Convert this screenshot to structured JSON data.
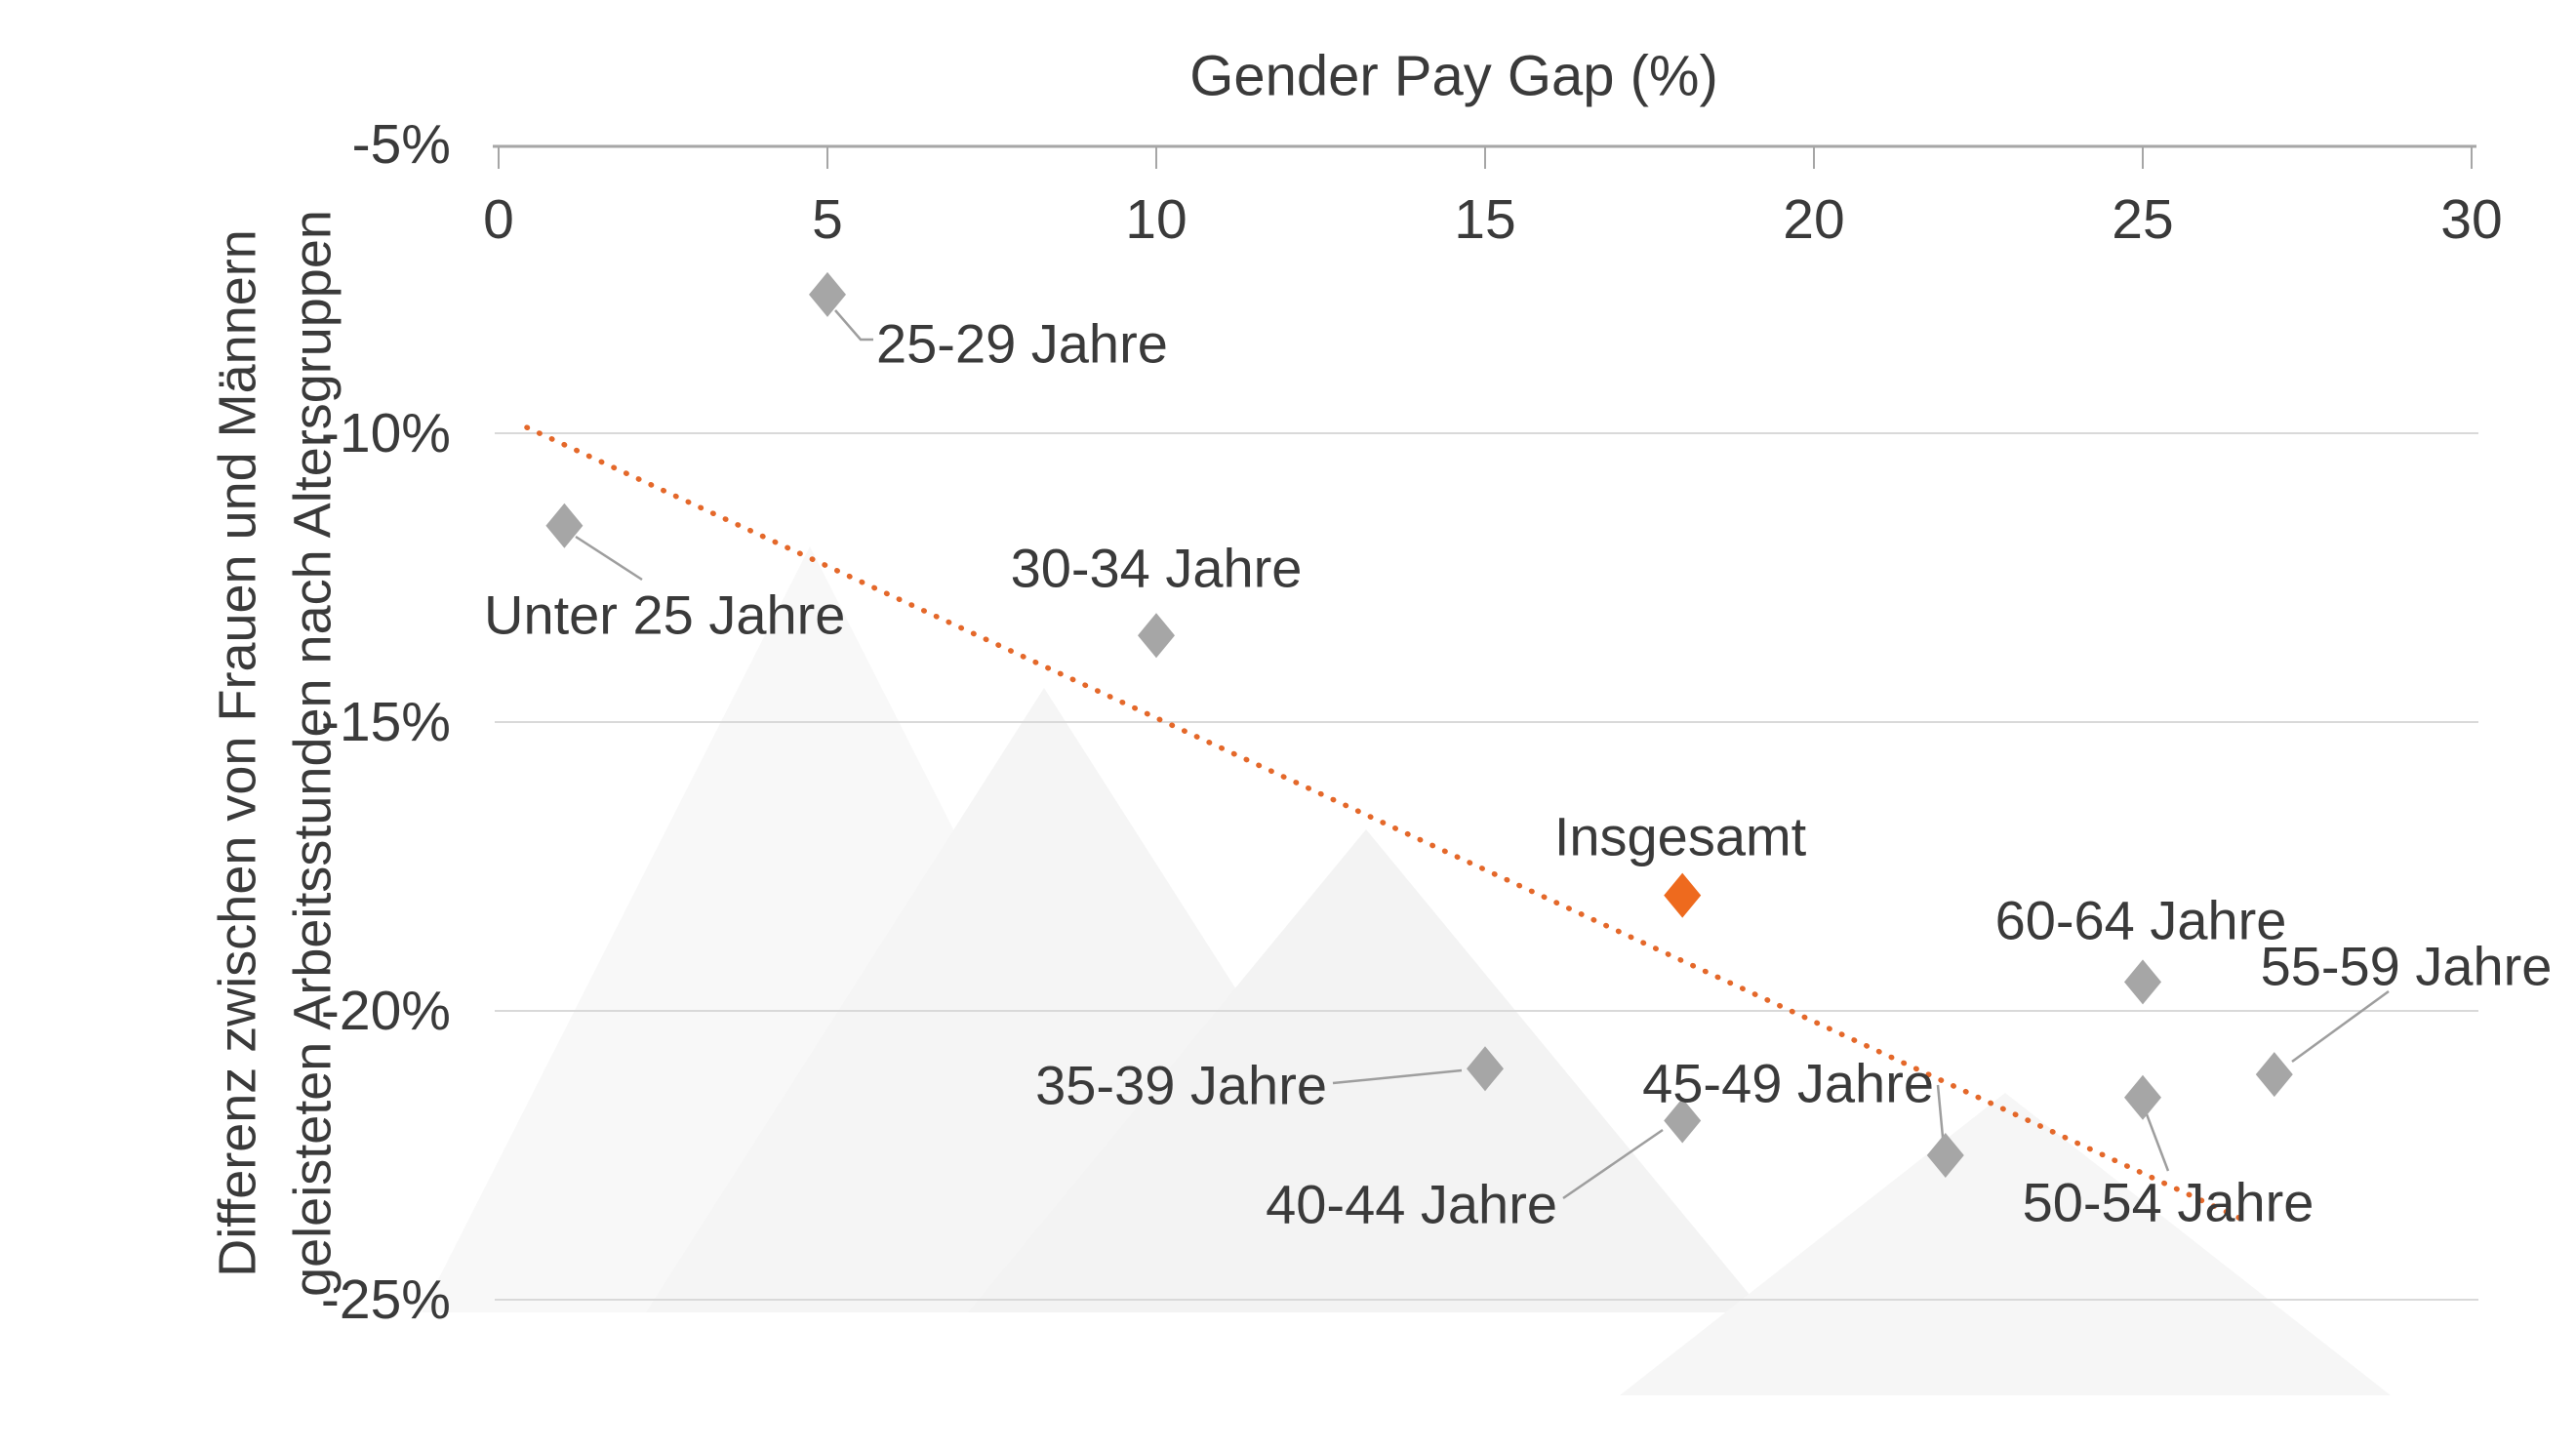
{
  "chart_data": {
    "type": "scatter",
    "title": "",
    "xlabel": "Gender Pay Gap (%)",
    "ylabel_lines": [
      "Differenz zwischen von Frauen und Männern",
      "geleisteten Arbeitsstunden nach Altersgruppen"
    ],
    "xlim": [
      0,
      30
    ],
    "ylim": [
      -25,
      -5
    ],
    "x_ticks": [
      0,
      5,
      10,
      15,
      20,
      25,
      30
    ],
    "y_ticks": [
      "-5%",
      "-10%",
      "-15%",
      "-20%",
      "-25%"
    ],
    "grid": "horizontal",
    "legend": null,
    "points": [
      {
        "label": "Unter 25 Jahre",
        "x": 1.0,
        "y": -11.6,
        "highlight": false
      },
      {
        "label": "25-29 Jahre",
        "x": 5.0,
        "y": -7.6,
        "highlight": false
      },
      {
        "label": "30-34 Jahre",
        "x": 10.0,
        "y": -13.5,
        "highlight": false
      },
      {
        "label": "35-39 Jahre",
        "x": 15.0,
        "y": -21.0,
        "highlight": false
      },
      {
        "label": "40-44 Jahre",
        "x": 18.0,
        "y": -21.9,
        "highlight": false
      },
      {
        "label": "45-49 Jahre",
        "x": 22.0,
        "y": -22.5,
        "highlight": false
      },
      {
        "label": "50-54 Jahre",
        "x": 25.0,
        "y": -21.5,
        "highlight": false
      },
      {
        "label": "55-59 Jahre",
        "x": 27.0,
        "y": -21.1,
        "highlight": false
      },
      {
        "label": "60-64 Jahre",
        "x": 25.0,
        "y": -19.5,
        "highlight": false
      },
      {
        "label": "Insgesamt",
        "x": 18.0,
        "y": -18.0,
        "highlight": true
      }
    ],
    "trendline": {
      "style": "dotted",
      "x1": 0.43,
      "y1": -9.9,
      "x2": 26.5,
      "y2": -23.6
    },
    "colors": {
      "point": "#a6a6a6",
      "highlight": "#ee6a1e",
      "trend": "#e4682a",
      "grid": "#d9d9d9",
      "axis": "#a6a6a6",
      "connector": "#9e9e9e",
      "text": "#3a3a3a",
      "watermark": "#f5f5f5"
    }
  }
}
